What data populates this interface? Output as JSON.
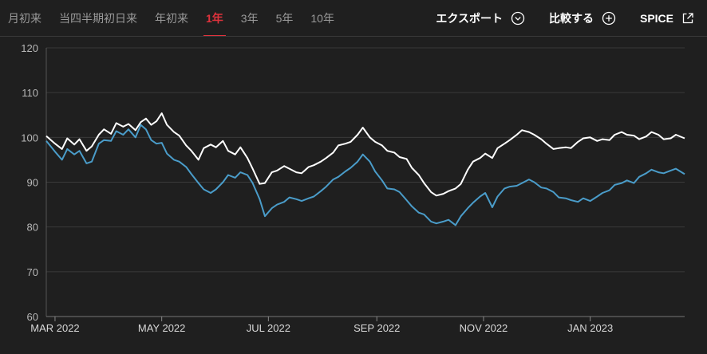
{
  "tabs": [
    {
      "label": "月初来",
      "active": false
    },
    {
      "label": "当四半期初日来",
      "active": false
    },
    {
      "label": "年初来",
      "active": false
    },
    {
      "label": "1年",
      "active": true
    },
    {
      "label": "3年",
      "active": false
    },
    {
      "label": "5年",
      "active": false
    },
    {
      "label": "10年",
      "active": false
    }
  ],
  "actions": {
    "export_label": "エクスポート",
    "compare_label": "比較する",
    "spice_label": "SPICE"
  },
  "colors": {
    "accent": "#e0323c",
    "series_white": "#ffffff",
    "series_blue": "#4a9cc9",
    "grid": "#3a3a3a",
    "background": "#1f1f1f"
  },
  "chart_data": {
    "type": "line",
    "title": "",
    "xlabel": "",
    "ylabel": "",
    "ylim": [
      60,
      120
    ],
    "yticks": [
      60,
      70,
      80,
      90,
      100,
      110,
      120
    ],
    "grid": true,
    "x_range": [
      "2022-02-24",
      "2023-02-24"
    ],
    "xticks": [
      {
        "label": "MAR 2022",
        "date": "2022-03-01"
      },
      {
        "label": "MAY 2022",
        "date": "2022-05-01"
      },
      {
        "label": "JUL 2022",
        "date": "2022-07-01"
      },
      {
        "label": "SEP 2022",
        "date": "2022-09-01"
      },
      {
        "label": "NOV 2022",
        "date": "2022-11-01"
      },
      {
        "label": "JAN 2023",
        "date": "2023-01-01"
      }
    ],
    "series": [
      {
        "color": "#ffffff",
        "points": [
          [
            "2022-02-24",
            100.3
          ],
          [
            "2022-03-01",
            98.6
          ],
          [
            "2022-03-05",
            97.4
          ],
          [
            "2022-03-08",
            99.8
          ],
          [
            "2022-03-12",
            98.4
          ],
          [
            "2022-03-15",
            99.6
          ],
          [
            "2022-03-19",
            97.0
          ],
          [
            "2022-03-22",
            98.0
          ],
          [
            "2022-03-26",
            100.6
          ],
          [
            "2022-03-29",
            101.8
          ],
          [
            "2022-04-02",
            100.8
          ],
          [
            "2022-04-05",
            103.2
          ],
          [
            "2022-04-09",
            102.4
          ],
          [
            "2022-04-12",
            103.0
          ],
          [
            "2022-04-16",
            101.6
          ],
          [
            "2022-04-19",
            103.4
          ],
          [
            "2022-04-22",
            104.2
          ],
          [
            "2022-04-25",
            102.8
          ],
          [
            "2022-04-28",
            103.6
          ],
          [
            "2022-05-01",
            105.4
          ],
          [
            "2022-05-04",
            102.8
          ],
          [
            "2022-05-08",
            101.2
          ],
          [
            "2022-05-11",
            100.4
          ],
          [
            "2022-05-15",
            98.2
          ],
          [
            "2022-05-18",
            97.0
          ],
          [
            "2022-05-22",
            95.0
          ],
          [
            "2022-05-25",
            97.6
          ],
          [
            "2022-05-29",
            98.4
          ],
          [
            "2022-06-01",
            97.8
          ],
          [
            "2022-06-05",
            99.2
          ],
          [
            "2022-06-08",
            97.0
          ],
          [
            "2022-06-12",
            96.2
          ],
          [
            "2022-06-15",
            97.8
          ],
          [
            "2022-06-19",
            95.4
          ],
          [
            "2022-06-22",
            93.0
          ],
          [
            "2022-06-26",
            89.6
          ],
          [
            "2022-06-29",
            89.8
          ],
          [
            "2022-07-03",
            92.2
          ],
          [
            "2022-07-06",
            92.6
          ],
          [
            "2022-07-10",
            93.6
          ],
          [
            "2022-07-13",
            93.0
          ],
          [
            "2022-07-17",
            92.2
          ],
          [
            "2022-07-20",
            92.0
          ],
          [
            "2022-07-24",
            93.4
          ],
          [
            "2022-07-27",
            93.8
          ],
          [
            "2022-07-31",
            94.6
          ],
          [
            "2022-08-03",
            95.4
          ],
          [
            "2022-08-07",
            96.6
          ],
          [
            "2022-08-10",
            98.2
          ],
          [
            "2022-08-14",
            98.6
          ],
          [
            "2022-08-17",
            99.0
          ],
          [
            "2022-08-21",
            100.6
          ],
          [
            "2022-08-24",
            102.2
          ],
          [
            "2022-08-28",
            100.0
          ],
          [
            "2022-08-31",
            99.0
          ],
          [
            "2022-09-04",
            98.2
          ],
          [
            "2022-09-07",
            97.0
          ],
          [
            "2022-09-11",
            96.6
          ],
          [
            "2022-09-14",
            95.6
          ],
          [
            "2022-09-18",
            95.2
          ],
          [
            "2022-09-21",
            93.2
          ],
          [
            "2022-09-25",
            91.6
          ],
          [
            "2022-09-28",
            89.8
          ],
          [
            "2022-10-02",
            87.8
          ],
          [
            "2022-10-05",
            87.0
          ],
          [
            "2022-10-09",
            87.4
          ],
          [
            "2022-10-12",
            88.0
          ],
          [
            "2022-10-16",
            88.6
          ],
          [
            "2022-10-19",
            89.6
          ],
          [
            "2022-10-23",
            92.8
          ],
          [
            "2022-10-26",
            94.6
          ],
          [
            "2022-10-30",
            95.4
          ],
          [
            "2022-11-02",
            96.4
          ],
          [
            "2022-11-06",
            95.4
          ],
          [
            "2022-11-09",
            97.6
          ],
          [
            "2022-11-13",
            98.6
          ],
          [
            "2022-11-16",
            99.4
          ],
          [
            "2022-11-20",
            100.6
          ],
          [
            "2022-11-23",
            101.6
          ],
          [
            "2022-11-27",
            101.2
          ],
          [
            "2022-11-30",
            100.6
          ],
          [
            "2022-12-04",
            99.6
          ],
          [
            "2022-12-07",
            98.6
          ],
          [
            "2022-12-11",
            97.4
          ],
          [
            "2022-12-14",
            97.6
          ],
          [
            "2022-12-18",
            97.8
          ],
          [
            "2022-12-21",
            97.6
          ],
          [
            "2022-12-25",
            99.0
          ],
          [
            "2022-12-28",
            99.8
          ],
          [
            "2023-01-01",
            100.0
          ],
          [
            "2023-01-05",
            99.2
          ],
          [
            "2023-01-08",
            99.6
          ],
          [
            "2023-01-12",
            99.4
          ],
          [
            "2023-01-15",
            100.6
          ],
          [
            "2023-01-19",
            101.2
          ],
          [
            "2023-01-22",
            100.6
          ],
          [
            "2023-01-26",
            100.4
          ],
          [
            "2023-01-29",
            99.6
          ],
          [
            "2023-02-02",
            100.2
          ],
          [
            "2023-02-05",
            101.2
          ],
          [
            "2023-02-09",
            100.6
          ],
          [
            "2023-02-12",
            99.6
          ],
          [
            "2023-02-16",
            99.8
          ],
          [
            "2023-02-19",
            100.6
          ],
          [
            "2023-02-24",
            99.8
          ]
        ]
      },
      {
        "color": "#4a9cc9",
        "points": [
          [
            "2022-02-24",
            99.2
          ],
          [
            "2022-03-01",
            96.8
          ],
          [
            "2022-03-05",
            95.0
          ],
          [
            "2022-03-08",
            97.4
          ],
          [
            "2022-03-12",
            96.2
          ],
          [
            "2022-03-15",
            97.0
          ],
          [
            "2022-03-19",
            94.2
          ],
          [
            "2022-03-22",
            94.6
          ],
          [
            "2022-03-26",
            98.6
          ],
          [
            "2022-03-29",
            99.4
          ],
          [
            "2022-04-02",
            99.2
          ],
          [
            "2022-04-05",
            101.4
          ],
          [
            "2022-04-09",
            100.6
          ],
          [
            "2022-04-12",
            101.8
          ],
          [
            "2022-04-16",
            100.0
          ],
          [
            "2022-04-19",
            102.8
          ],
          [
            "2022-04-22",
            101.8
          ],
          [
            "2022-04-25",
            99.4
          ],
          [
            "2022-04-28",
            98.6
          ],
          [
            "2022-05-01",
            98.8
          ],
          [
            "2022-05-04",
            96.4
          ],
          [
            "2022-05-08",
            95.0
          ],
          [
            "2022-05-11",
            94.6
          ],
          [
            "2022-05-15",
            93.4
          ],
          [
            "2022-05-18",
            91.8
          ],
          [
            "2022-05-22",
            89.8
          ],
          [
            "2022-05-25",
            88.4
          ],
          [
            "2022-05-29",
            87.6
          ],
          [
            "2022-06-01",
            88.4
          ],
          [
            "2022-06-05",
            90.0
          ],
          [
            "2022-06-08",
            91.6
          ],
          [
            "2022-06-12",
            91.0
          ],
          [
            "2022-06-15",
            92.2
          ],
          [
            "2022-06-19",
            91.6
          ],
          [
            "2022-06-22",
            89.8
          ],
          [
            "2022-06-26",
            86.2
          ],
          [
            "2022-06-29",
            82.4
          ],
          [
            "2022-07-03",
            84.2
          ],
          [
            "2022-07-06",
            85.0
          ],
          [
            "2022-07-10",
            85.6
          ],
          [
            "2022-07-13",
            86.6
          ],
          [
            "2022-07-17",
            86.2
          ],
          [
            "2022-07-20",
            85.8
          ],
          [
            "2022-07-24",
            86.4
          ],
          [
            "2022-07-27",
            86.8
          ],
          [
            "2022-07-31",
            88.0
          ],
          [
            "2022-08-03",
            89.0
          ],
          [
            "2022-08-07",
            90.6
          ],
          [
            "2022-08-10",
            91.2
          ],
          [
            "2022-08-14",
            92.4
          ],
          [
            "2022-08-17",
            93.2
          ],
          [
            "2022-08-21",
            94.6
          ],
          [
            "2022-08-24",
            96.2
          ],
          [
            "2022-08-28",
            94.6
          ],
          [
            "2022-08-31",
            92.4
          ],
          [
            "2022-09-04",
            90.4
          ],
          [
            "2022-09-07",
            88.6
          ],
          [
            "2022-09-11",
            88.4
          ],
          [
            "2022-09-14",
            87.8
          ],
          [
            "2022-09-18",
            86.0
          ],
          [
            "2022-09-21",
            84.6
          ],
          [
            "2022-09-25",
            83.2
          ],
          [
            "2022-09-28",
            82.8
          ],
          [
            "2022-10-02",
            81.2
          ],
          [
            "2022-10-05",
            80.8
          ],
          [
            "2022-10-09",
            81.2
          ],
          [
            "2022-10-12",
            81.6
          ],
          [
            "2022-10-16",
            80.4
          ],
          [
            "2022-10-19",
            82.4
          ],
          [
            "2022-10-23",
            84.2
          ],
          [
            "2022-10-26",
            85.4
          ],
          [
            "2022-10-30",
            86.8
          ],
          [
            "2022-11-02",
            87.6
          ],
          [
            "2022-11-06",
            84.4
          ],
          [
            "2022-11-09",
            86.8
          ],
          [
            "2022-11-13",
            88.6
          ],
          [
            "2022-11-16",
            89.0
          ],
          [
            "2022-11-20",
            89.2
          ],
          [
            "2022-11-23",
            89.8
          ],
          [
            "2022-11-27",
            90.6
          ],
          [
            "2022-11-30",
            90.0
          ],
          [
            "2022-12-04",
            88.8
          ],
          [
            "2022-12-07",
            88.6
          ],
          [
            "2022-12-11",
            87.8
          ],
          [
            "2022-12-14",
            86.6
          ],
          [
            "2022-12-18",
            86.4
          ],
          [
            "2022-12-21",
            86.0
          ],
          [
            "2022-12-25",
            85.6
          ],
          [
            "2022-12-28",
            86.4
          ],
          [
            "2023-01-01",
            85.8
          ],
          [
            "2023-01-05",
            86.8
          ],
          [
            "2023-01-08",
            87.6
          ],
          [
            "2023-01-12",
            88.2
          ],
          [
            "2023-01-15",
            89.4
          ],
          [
            "2023-01-19",
            89.8
          ],
          [
            "2023-01-22",
            90.4
          ],
          [
            "2023-01-26",
            89.8
          ],
          [
            "2023-01-29",
            91.2
          ],
          [
            "2023-02-02",
            92.0
          ],
          [
            "2023-02-05",
            92.8
          ],
          [
            "2023-02-09",
            92.2
          ],
          [
            "2023-02-12",
            92.0
          ],
          [
            "2023-02-16",
            92.6
          ],
          [
            "2023-02-19",
            93.0
          ],
          [
            "2023-02-24",
            91.8
          ]
        ]
      }
    ]
  }
}
